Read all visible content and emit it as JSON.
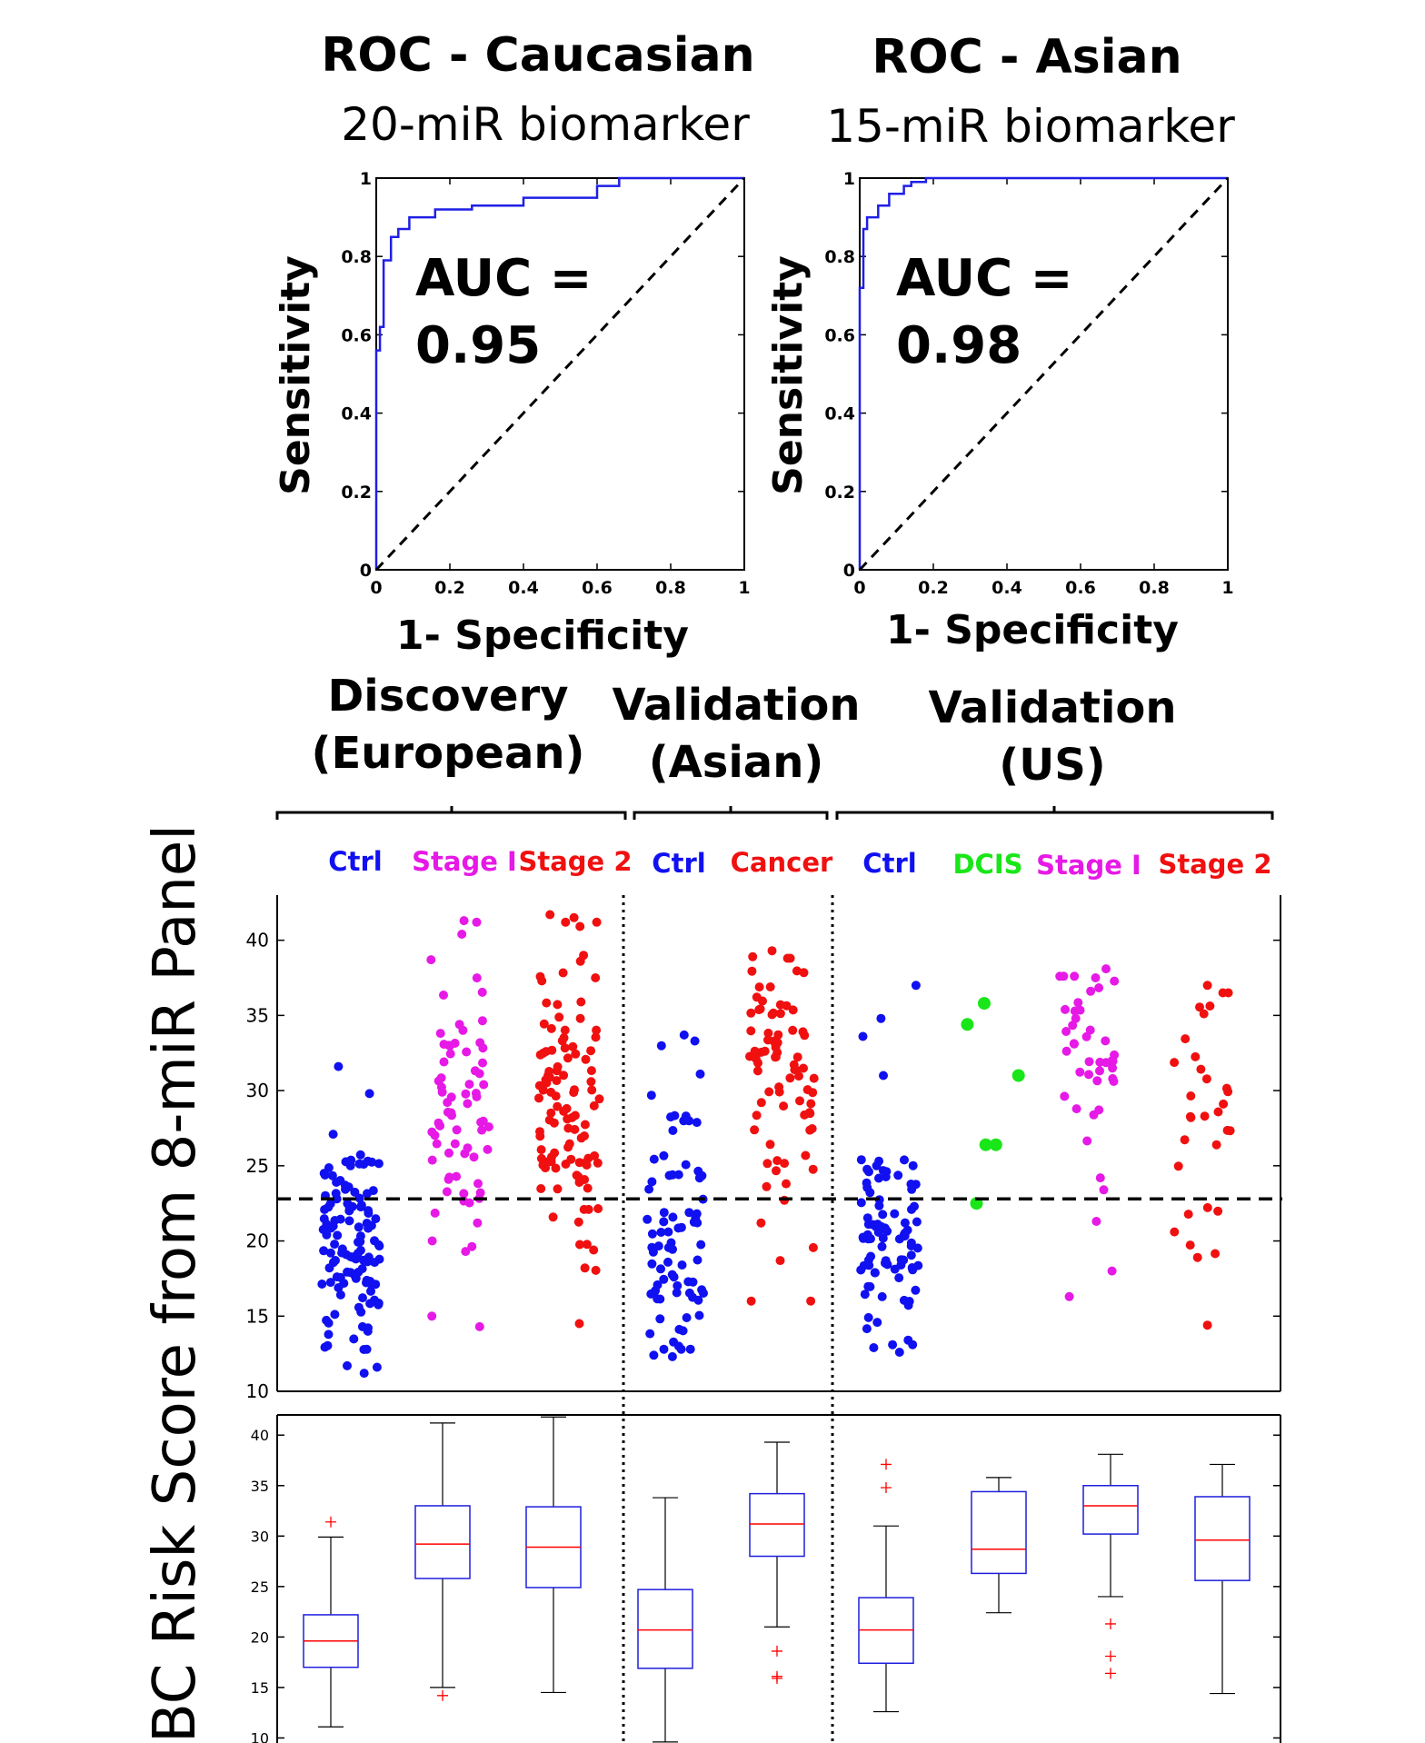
{
  "chart_data": [
    {
      "type": "line",
      "title": "ROC - Caucasian",
      "subtitle": "20-miR biomarker",
      "xlabel": "1- Specificity",
      "ylabel": "Sensitivity",
      "annotation": [
        "AUC =",
        "0.95"
      ],
      "xlim": [
        0,
        1
      ],
      "ylim": [
        0,
        1
      ],
      "x_ticks": [
        "0",
        "0.2",
        "0.4",
        "0.6",
        "0.8",
        "1"
      ],
      "y_ticks": [
        "0",
        "0.2",
        "0.4",
        "0.6",
        "0.8",
        "1"
      ],
      "series": [
        {
          "color": "#1f1fe6",
          "x": [
            0,
            0,
            0.01,
            0.01,
            0.02,
            0.02,
            0.04,
            0.04,
            0.06,
            0.06,
            0.09,
            0.09,
            0.16,
            0.16,
            0.26,
            0.26,
            0.4,
            0.4,
            0.6,
            0.6,
            0.66,
            0.66,
            1
          ],
          "y": [
            0,
            0.56,
            0.56,
            0.62,
            0.62,
            0.79,
            0.79,
            0.85,
            0.85,
            0.87,
            0.87,
            0.9,
            0.9,
            0.92,
            0.92,
            0.93,
            0.93,
            0.95,
            0.95,
            0.98,
            0.98,
            1,
            1
          ]
        },
        {
          "style": "dashed",
          "color": "#000000",
          "x": [
            0,
            1
          ],
          "y": [
            0,
            1
          ]
        }
      ]
    },
    {
      "type": "line",
      "title": "ROC - Asian",
      "subtitle": "15-miR biomarker",
      "xlabel": "1- Specificity",
      "ylabel": "Sensitivity",
      "annotation": [
        "AUC =",
        "0.98"
      ],
      "xlim": [
        0,
        1
      ],
      "ylim": [
        0,
        1
      ],
      "x_ticks": [
        "0",
        "0.2",
        "0.4",
        "0.6",
        "0.8",
        "1"
      ],
      "y_ticks": [
        "0",
        "0.2",
        "0.4",
        "0.6",
        "0.8",
        "1"
      ],
      "series": [
        {
          "color": "#1f1fe6",
          "x": [
            0,
            0,
            0.01,
            0.01,
            0.02,
            0.02,
            0.05,
            0.05,
            0.08,
            0.08,
            0.12,
            0.12,
            0.14,
            0.14,
            0.18,
            0.18,
            1
          ],
          "y": [
            0,
            0.72,
            0.72,
            0.87,
            0.87,
            0.9,
            0.9,
            0.93,
            0.93,
            0.96,
            0.96,
            0.98,
            0.98,
            0.99,
            0.99,
            1,
            1
          ]
        },
        {
          "style": "dashed",
          "color": "#000000",
          "x": [
            0,
            1
          ],
          "y": [
            0,
            1
          ]
        }
      ]
    },
    {
      "type": "scatter",
      "ylabel": "BC Risk Score from 8-miR Panel",
      "ylim": [
        10,
        43
      ],
      "y_ticks": [
        "10",
        "15",
        "20",
        "25",
        "30",
        "35",
        "40"
      ],
      "threshold": 22.8,
      "groups": [
        {
          "label_lines": [
            "Discovery",
            "(European)"
          ]
        },
        {
          "label_lines": [
            "Validation",
            "(Asian)"
          ]
        },
        {
          "label_lines": [
            "Validation",
            "(US)"
          ]
        }
      ],
      "categories": [
        {
          "label": "Ctrl",
          "color": "#1010f0",
          "n": 120,
          "center": 20.0,
          "spread": 3.5,
          "min": 11.2,
          "max": 31.6,
          "extra": [
            31.6,
            29.8,
            11.2,
            11.6
          ]
        },
        {
          "label": "Stage I",
          "color": "#e619e6",
          "n": 65,
          "center": 28.8,
          "spread": 4.0,
          "min": 14.3,
          "max": 41.3,
          "extra": [
            41.3,
            41.2,
            40.4,
            38.7,
            14.3,
            15.0,
            19.3,
            20.0
          ]
        },
        {
          "label": "Stage 2",
          "color": "#f01010",
          "n": 100,
          "center": 29.0,
          "spread": 4.5,
          "min": 14.5,
          "max": 41.7,
          "extra": [
            41.7,
            41.5,
            39.0,
            38.6,
            14.5,
            18.2,
            19.4
          ]
        },
        {
          "label": "Ctrl",
          "color": "#1010f0",
          "n": 75,
          "center": 20.5,
          "spread": 4.5,
          "min": 12.3,
          "max": 33.7,
          "extra": [
            33.7,
            33.3,
            31.1,
            12.3,
            12.4,
            13.0
          ]
        },
        {
          "label": "Cancer",
          "color": "#f01010",
          "n": 75,
          "center": 30.9,
          "spread": 3.4,
          "min": 16.0,
          "max": 39.3,
          "extra": [
            39.3,
            38.9,
            16.0,
            16.0,
            18.7,
            21.2
          ]
        },
        {
          "label": "Ctrl",
          "color": "#1010f0",
          "n": 85,
          "center": 20.5,
          "spread": 4.0,
          "min": 12.6,
          "max": 37.0,
          "extra": [
            37.0,
            34.8,
            31.0,
            12.6,
            12.9,
            13.4
          ]
        },
        {
          "label": "DCIS",
          "color": "#19e619",
          "n": 0,
          "values": [
            35.8,
            34.4,
            31.0,
            26.4,
            26.4,
            22.5
          ]
        },
        {
          "label": "Stage I",
          "color": "#e619e6",
          "n": 38,
          "center": 32.4,
          "spread": 3.0,
          "min": 16.3,
          "max": 38.1,
          "extra": [
            38.1,
            37.5,
            18.0,
            16.3,
            21.3,
            24.2
          ]
        },
        {
          "label": "Stage 2",
          "color": "#f01010",
          "n": 28,
          "center": 30.0,
          "spread": 4.3,
          "min": 14.4,
          "max": 37.0,
          "extra": [
            37.0,
            14.4,
            18.9,
            20.6
          ]
        }
      ]
    },
    {
      "type": "box",
      "ylim": [
        9.5,
        42
      ],
      "y_ticks": [
        "10",
        "15",
        "20",
        "25",
        "30",
        "35",
        "40"
      ],
      "median_color": "#ff0000",
      "box_color": "#1f1fdf",
      "outlier_color": "#ff0000",
      "boxes": [
        {
          "whisker_low": 11.1,
          "q1": 17.0,
          "median": 19.6,
          "q3": 22.2,
          "whisker_high": 29.9,
          "outliers": [
            31.4
          ]
        },
        {
          "whisker_low": 15.0,
          "q1": 25.8,
          "median": 29.2,
          "q3": 33.0,
          "whisker_high": 41.2,
          "outliers": [
            14.2
          ]
        },
        {
          "whisker_low": 14.5,
          "q1": 24.9,
          "median": 28.9,
          "q3": 32.9,
          "whisker_high": 41.8,
          "outliers": []
        },
        {
          "whisker_low": 9.6,
          "q1": 16.9,
          "median": 20.7,
          "q3": 24.7,
          "whisker_high": 33.8,
          "outliers": []
        },
        {
          "whisker_low": 21.0,
          "q1": 28.0,
          "median": 31.2,
          "q3": 34.2,
          "whisker_high": 39.3,
          "outliers": [
            18.6,
            16.1,
            15.9
          ]
        },
        {
          "whisker_low": 12.6,
          "q1": 17.4,
          "median": 20.7,
          "q3": 23.9,
          "whisker_high": 31.0,
          "outliers": [
            37.1,
            34.8
          ]
        },
        {
          "whisker_low": 22.4,
          "q1": 26.3,
          "median": 28.7,
          "q3": 34.4,
          "whisker_high": 35.8,
          "outliers": []
        },
        {
          "whisker_low": 24.0,
          "q1": 30.2,
          "median": 33.0,
          "q3": 35.0,
          "whisker_high": 38.1,
          "outliers": [
            21.3,
            18.1,
            16.4
          ]
        },
        {
          "whisker_low": 14.4,
          "q1": 25.6,
          "median": 29.6,
          "q3": 33.9,
          "whisker_high": 37.1,
          "outliers": []
        }
      ]
    }
  ]
}
